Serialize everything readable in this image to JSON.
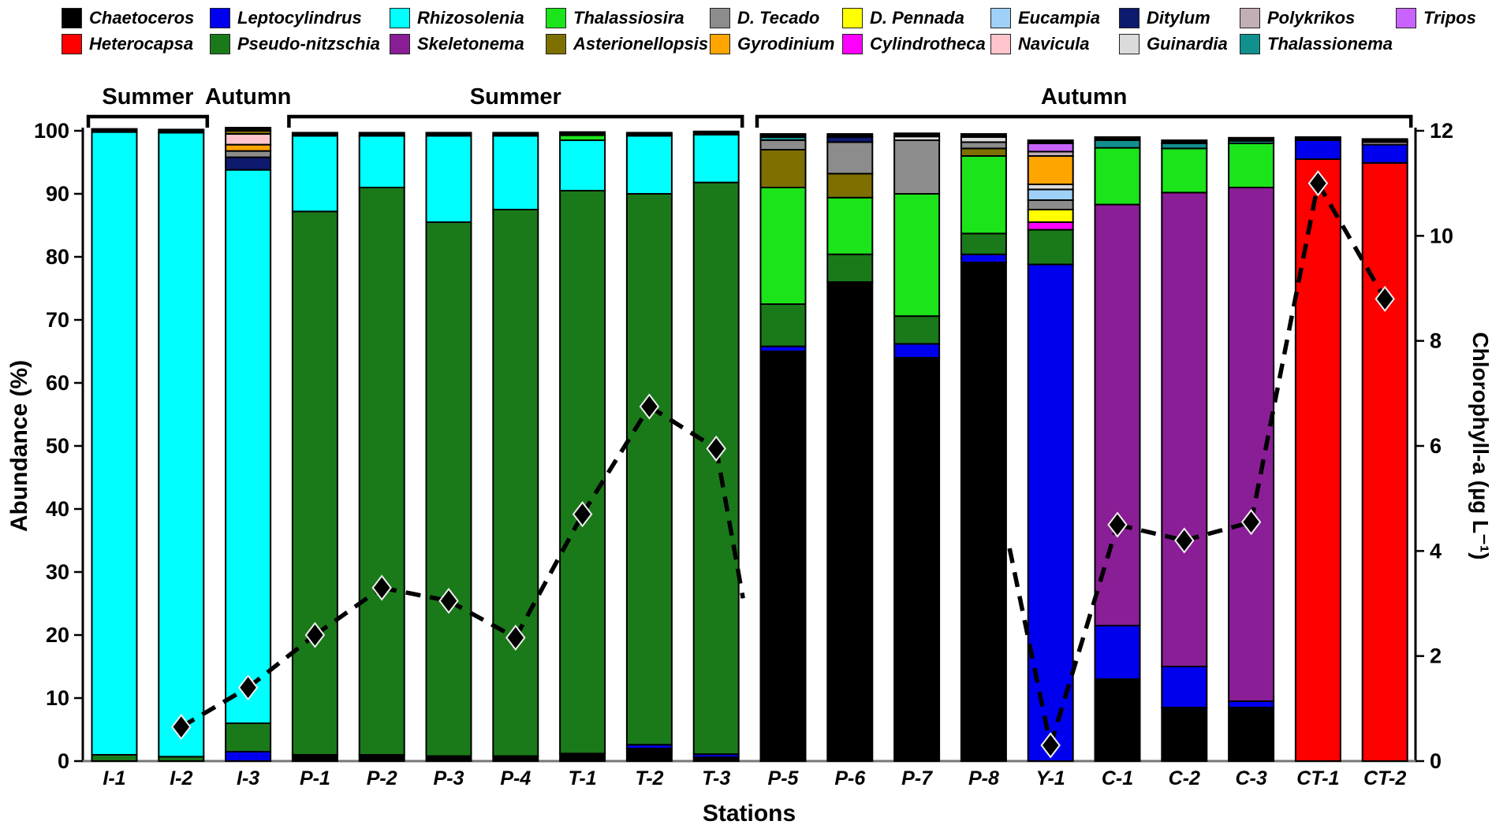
{
  "chart_data": {
    "type": "bar",
    "subtype": "stacked-percent-bars-with-dashed-line-overlay",
    "title": "",
    "xlabel": "Stations",
    "ylabel_left": "Abundance (%)",
    "ylabel_right": "Chlorophyll-a (µg L⁻¹)",
    "ylim_left": [
      0,
      100
    ],
    "yticks_left": [
      0,
      10,
      20,
      30,
      40,
      50,
      60,
      70,
      80,
      90,
      100
    ],
    "ylim_right": [
      0,
      12
    ],
    "yticks_right": [
      0,
      2,
      4,
      6,
      8,
      10,
      12
    ],
    "grid": false,
    "stations": [
      "I-1",
      "I-2",
      "I-3",
      "P-1",
      "P-2",
      "P-3",
      "P-4",
      "T-1",
      "T-2",
      "T-3",
      "P-5",
      "P-6",
      "P-7",
      "P-8",
      "Y-1",
      "C-1",
      "C-2",
      "C-3",
      "CT-1",
      "CT-2"
    ],
    "season_groups": [
      {
        "label": "Summer",
        "from": "I-1",
        "to": "I-2",
        "bracket": true
      },
      {
        "label": "Autumn",
        "from": "I-3",
        "to": "I-3",
        "bracket": false
      },
      {
        "label": "Summer",
        "from": "P-1",
        "to": "T-3",
        "bracket": true
      },
      {
        "label": "Autumn",
        "from": "P-5",
        "to": "CT-2",
        "bracket": true
      }
    ],
    "taxa": [
      {
        "name": "Chaetoceros",
        "color": "#000000"
      },
      {
        "name": "Heterocapsa",
        "color": "#FF0000"
      },
      {
        "name": "Leptocylindrus",
        "color": "#0000EE"
      },
      {
        "name": "Pseudo-nitzschia",
        "color": "#1A7A1A"
      },
      {
        "name": "Rhizosolenia",
        "color": "#00FFFF"
      },
      {
        "name": "Skeletonema",
        "color": "#8A1E96"
      },
      {
        "name": "Thalassiosira",
        "color": "#1BE41B"
      },
      {
        "name": "Asterionellopsis",
        "color": "#7D7000"
      },
      {
        "name": "D. Tecado",
        "color": "#8C8C8C"
      },
      {
        "name": "Gyrodinium",
        "color": "#FFA500"
      },
      {
        "name": "D. Pennada",
        "color": "#FFFF00"
      },
      {
        "name": "Cylindrotheca",
        "color": "#FF00FF"
      },
      {
        "name": "Eucampia",
        "color": "#9FD0F7"
      },
      {
        "name": "Navicula",
        "color": "#FFC4CC"
      },
      {
        "name": "Ditylum",
        "color": "#0D1A6E"
      },
      {
        "name": "Guinardia",
        "color": "#DBDBDB"
      },
      {
        "name": "Polykrikos",
        "color": "#C3AEB5"
      },
      {
        "name": "Thalassionema",
        "color": "#12908E"
      },
      {
        "name": "Tripos",
        "color": "#C963FF"
      }
    ],
    "legend_rows": [
      [
        "Chaetoceros",
        "Leptocylindrus",
        "Rhizosolenia",
        "Thalassiosira",
        "D. Tecado",
        "D. Pennada",
        "Eucampia",
        "Ditylum",
        "Polykrikos",
        "Tripos"
      ],
      [
        "Heterocapsa",
        "Pseudo-nitzschia",
        "Skeletonema",
        "Asterionellopsis",
        "Gyrodinium",
        "Cylindrotheca",
        "Navicula",
        "Guinardia",
        "Thalassionema"
      ]
    ],
    "bars": {
      "I-1": [
        [
          "Pseudo-nitzschia",
          1.0
        ],
        [
          "Rhizosolenia",
          98.8
        ]
      ],
      "I-2": [
        [
          "Pseudo-nitzschia",
          0.7
        ],
        [
          "Rhizosolenia",
          99.0
        ]
      ],
      "I-3": [
        [
          "Leptocylindrus",
          1.5
        ],
        [
          "Pseudo-nitzschia",
          4.5
        ],
        [
          "Rhizosolenia",
          87.8
        ],
        [
          "Ditylum",
          2.0
        ],
        [
          "D. Tecado",
          1.0
        ],
        [
          "Gyrodinium",
          1.0
        ],
        [
          "Navicula",
          1.7
        ],
        [
          "Asterionellopsis",
          0.5
        ]
      ],
      "P-1": [
        [
          "Chaetoceros",
          1.0
        ],
        [
          "Pseudo-nitzschia",
          86.2
        ],
        [
          "Rhizosolenia",
          12.0
        ]
      ],
      "P-2": [
        [
          "Chaetoceros",
          1.0
        ],
        [
          "Pseudo-nitzschia",
          90.0
        ],
        [
          "Rhizosolenia",
          8.2
        ]
      ],
      "P-3": [
        [
          "Chaetoceros",
          0.8
        ],
        [
          "Pseudo-nitzschia",
          84.7
        ],
        [
          "Rhizosolenia",
          13.7
        ]
      ],
      "P-4": [
        [
          "Chaetoceros",
          0.8
        ],
        [
          "Pseudo-nitzschia",
          86.7
        ],
        [
          "Rhizosolenia",
          11.7
        ]
      ],
      "T-1": [
        [
          "Chaetoceros",
          1.2
        ],
        [
          "Pseudo-nitzschia",
          89.3
        ],
        [
          "Rhizosolenia",
          8.0
        ],
        [
          "Thalassiosira",
          0.8
        ]
      ],
      "T-2": [
        [
          "Chaetoceros",
          2.0
        ],
        [
          "Leptocylindrus",
          0.6
        ],
        [
          "Pseudo-nitzschia",
          87.4
        ],
        [
          "Rhizosolenia",
          9.2
        ]
      ],
      "T-3": [
        [
          "Chaetoceros",
          0.6
        ],
        [
          "Leptocylindrus",
          0.5
        ],
        [
          "Pseudo-nitzschia",
          90.7
        ],
        [
          "Rhizosolenia",
          7.6
        ]
      ],
      "P-5": [
        [
          "Chaetoceros",
          65.0
        ],
        [
          "Leptocylindrus",
          0.8
        ],
        [
          "Pseudo-nitzschia",
          6.7
        ],
        [
          "Thalassiosira",
          18.5
        ],
        [
          "Asterionellopsis",
          6.0
        ],
        [
          "D. Tecado",
          1.5
        ],
        [
          "Thalassionema",
          0.5
        ]
      ],
      "P-6": [
        [
          "Chaetoceros",
          76.0
        ],
        [
          "Pseudo-nitzschia",
          4.4
        ],
        [
          "Thalassiosira",
          9.0
        ],
        [
          "Asterionellopsis",
          3.8
        ],
        [
          "D. Tecado",
          5.0
        ],
        [
          "Ditylum",
          0.8
        ]
      ],
      "P-7": [
        [
          "Chaetoceros",
          64.0
        ],
        [
          "Leptocylindrus",
          2.2
        ],
        [
          "Pseudo-nitzschia",
          4.4
        ],
        [
          "Thalassiosira",
          19.4
        ],
        [
          "D. Tecado",
          8.5
        ],
        [
          "Guinardia",
          0.6
        ]
      ],
      "P-8": [
        [
          "Chaetoceros",
          79.1
        ],
        [
          "Leptocylindrus",
          1.3
        ],
        [
          "Pseudo-nitzschia",
          3.3
        ],
        [
          "Thalassiosira",
          12.3
        ],
        [
          "Asterionellopsis",
          1.2
        ],
        [
          "D. Tecado",
          1.0
        ],
        [
          "Guinardia",
          0.8
        ]
      ],
      "Y-1": [
        [
          "Leptocylindrus",
          78.8
        ],
        [
          "Pseudo-nitzschia",
          5.5
        ],
        [
          "Cylindrotheca",
          1.2
        ],
        [
          "D. Pennada",
          2.0
        ],
        [
          "D. Tecado",
          1.5
        ],
        [
          "Eucampia",
          1.7
        ],
        [
          "Guinardia",
          0.8
        ],
        [
          "Gyrodinium",
          4.5
        ],
        [
          "Polykrikos",
          0.7
        ],
        [
          "Tripos",
          1.3
        ]
      ],
      "C-1": [
        [
          "Chaetoceros",
          13.0
        ],
        [
          "Leptocylindrus",
          8.5
        ],
        [
          "Skeletonema",
          66.8
        ],
        [
          "Thalassiosira",
          9.0
        ],
        [
          "Thalassionema",
          1.2
        ]
      ],
      "C-2": [
        [
          "Chaetoceros",
          8.5
        ],
        [
          "Leptocylindrus",
          6.5
        ],
        [
          "Skeletonema",
          75.2
        ],
        [
          "Thalassiosira",
          7.0
        ],
        [
          "Thalassionema",
          0.8
        ]
      ],
      "C-3": [
        [
          "Chaetoceros",
          8.5
        ],
        [
          "Leptocylindrus",
          1.0
        ],
        [
          "Skeletonema",
          81.5
        ],
        [
          "Thalassiosira",
          7.0
        ],
        [
          "Thalassionema",
          0.4
        ]
      ],
      "CT-1": [
        [
          "Heterocapsa",
          95.5
        ],
        [
          "Leptocylindrus",
          3.0
        ]
      ],
      "CT-2": [
        [
          "Heterocapsa",
          94.9
        ],
        [
          "Leptocylindrus",
          2.9
        ],
        [
          "Polykrikos",
          0.4
        ]
      ]
    },
    "chlorophyll_line": {
      "name": "Chlorophyll-a",
      "unit": "µg L⁻¹",
      "marker": "diamond",
      "line_style": "dashed",
      "color": "#000000",
      "values": {
        "I-1": null,
        "I-2": 0.65,
        "I-3": 1.4,
        "P-1": 2.4,
        "P-2": 3.3,
        "P-3": 3.05,
        "P-4": 2.35,
        "T-1": 4.7,
        "T-2": 6.75,
        "T-3": 5.95,
        "P-5": null,
        "P-6": null,
        "P-7": null,
        "P-8": null,
        "Y-1": 0.3,
        "C-1": 4.5,
        "C-2": 4.2,
        "C-3": 4.55,
        "CT-1": 11.0,
        "CT-2": 8.8
      },
      "hidden_span": {
        "from": "T-3",
        "to": "Y-1",
        "note": "line disappears behind black bars P-5 to P-8; no markers visible there"
      }
    }
  }
}
